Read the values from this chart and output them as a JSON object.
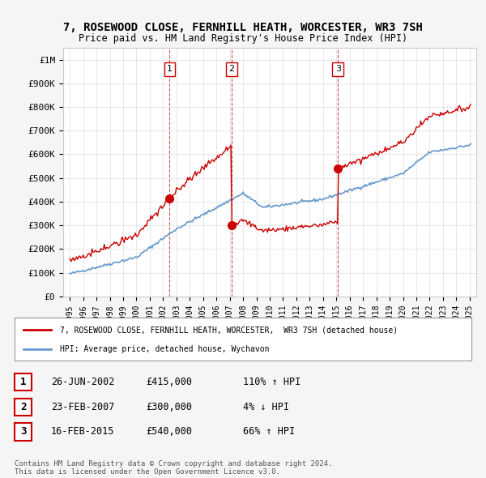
{
  "title": "7, ROSEWOOD CLOSE, FERNHILL HEATH, WORCESTER, WR3 7SH",
  "subtitle": "Price paid vs. HM Land Registry's House Price Index (HPI)",
  "legend_red": "7, ROSEWOOD CLOSE, FERNHILL HEATH, WORCESTER,  WR3 7SH (detached house)",
  "legend_blue": "HPI: Average price, detached house, Wychavon",
  "footer1": "Contains HM Land Registry data © Crown copyright and database right 2024.",
  "footer2": "This data is licensed under the Open Government Licence v3.0.",
  "transactions": [
    {
      "num": 1,
      "date": "26-JUN-2002",
      "price": "£415,000",
      "hpi": "110% ↑ HPI"
    },
    {
      "num": 2,
      "date": "23-FEB-2007",
      "price": "£300,000",
      "hpi": "4% ↓ HPI"
    },
    {
      "num": 3,
      "date": "16-FEB-2015",
      "price": "£540,000",
      "hpi": "66% ↑ HPI"
    }
  ],
  "sale_dates": [
    2002.484,
    2007.143,
    2015.121
  ],
  "sale_prices": [
    415000,
    300000,
    540000
  ],
  "sale_labels": [
    "1",
    "2",
    "3"
  ],
  "hpi_line_color": "#6699cc",
  "price_line_color": "#cc0000",
  "marker_color": "#cc0000",
  "dashed_line_color": "#cc0000",
  "ylabel_top": "£1M",
  "ylim": [
    0,
    1050000
  ],
  "yticks": [
    0,
    100000,
    200000,
    300000,
    400000,
    500000,
    600000,
    700000,
    800000,
    900000,
    1000000
  ],
  "ytick_labels": [
    "£0",
    "£100K",
    "£200K",
    "£300K",
    "£400K",
    "£500K",
    "£600K",
    "£700K",
    "£800K",
    "£900K",
    "£1M"
  ],
  "xlim": [
    1994.5,
    2025.5
  ],
  "background_color": "#f5f5f5",
  "plot_bg_color": "#ffffff",
  "grid_color": "#dddddd"
}
